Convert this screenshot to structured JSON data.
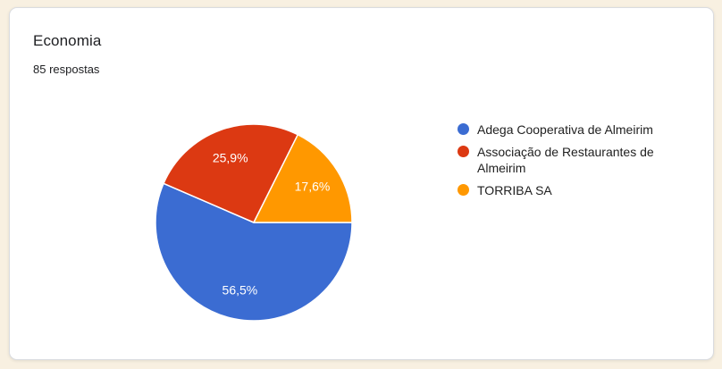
{
  "card": {
    "title": "Economia",
    "responses": "85 respostas"
  },
  "chart_data": {
    "type": "pie",
    "title": "Economia",
    "subtitle": "85 respostas",
    "start_angle": "east",
    "direction": "clockwise",
    "legend_position": "right",
    "slices": [
      {
        "label": "Adega Cooperativa de Almeirim",
        "value_pct": 56.5,
        "display": "56,5%",
        "color": "#3B6CD2"
      },
      {
        "label": "Associação de Restaurantes de Almeirim",
        "value_pct": 25.9,
        "display": "25,9%",
        "color": "#DC3912"
      },
      {
        "label": "TORRIBA SA",
        "value_pct": 17.6,
        "display": "17,6%",
        "color": "#FF9800"
      }
    ],
    "slice_label_color": "#FFFFFF",
    "colors": {
      "page_background": "#F8F0E1",
      "card_background": "#FFFFFF",
      "card_border": "#DADCE0",
      "text": "#202124"
    }
  }
}
